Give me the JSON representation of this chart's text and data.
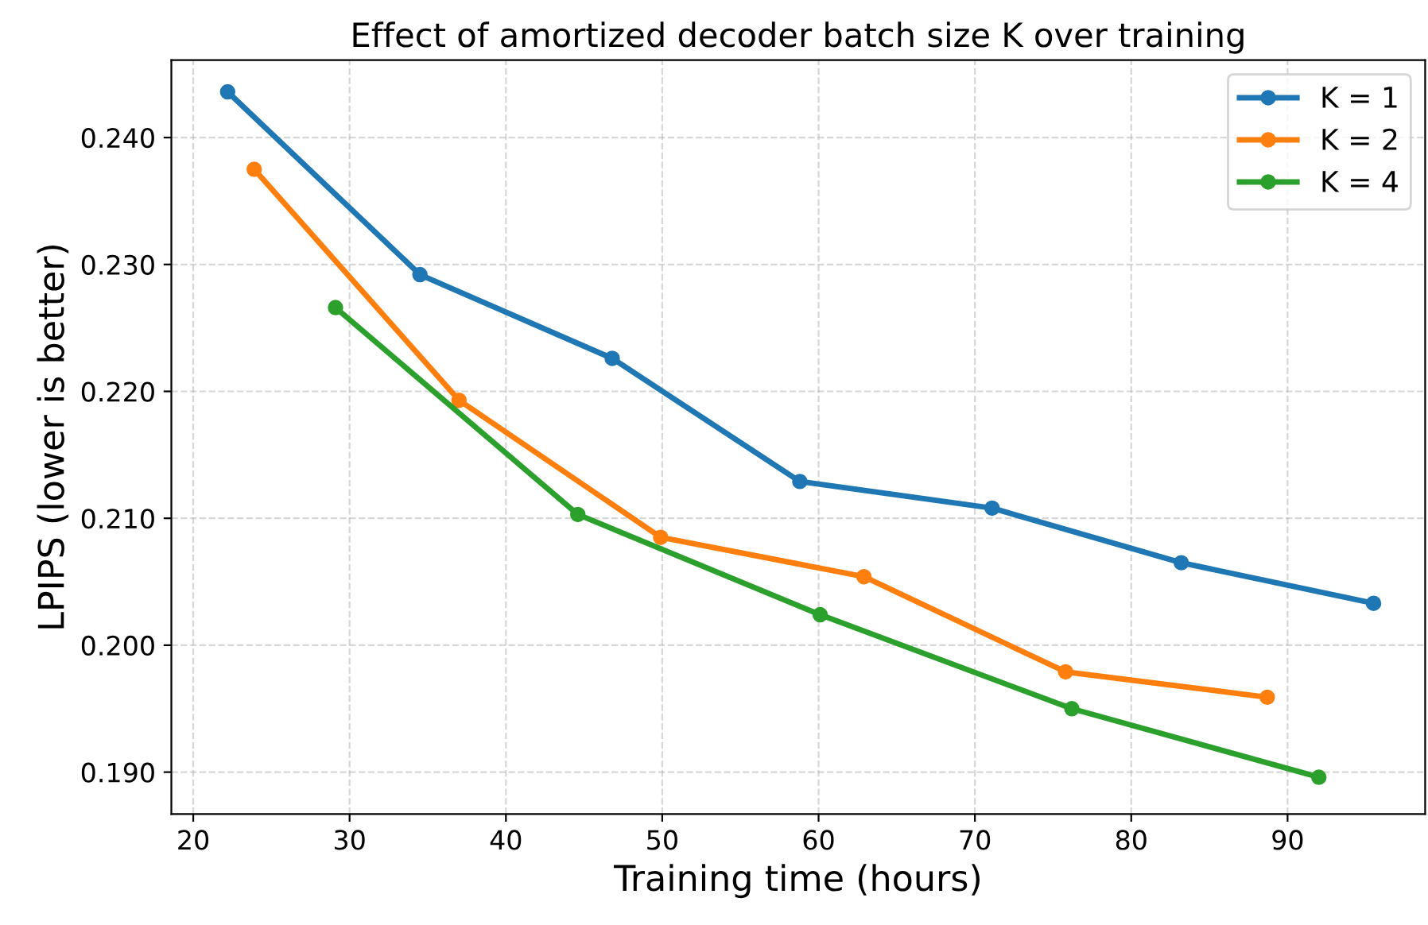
{
  "chart_data": {
    "type": "line",
    "title": "Effect of amortized decoder batch size K over training",
    "xlabel": "Training time (hours)",
    "ylabel": "LPIPS (lower is better)",
    "xlim": [
      18.6,
      98.8
    ],
    "xticks": [
      20,
      30,
      40,
      50,
      60,
      70,
      80,
      90
    ],
    "ylim": [
      0.1867,
      0.2461
    ],
    "yticks": [
      {
        "value": 0.19,
        "label": "0.190"
      },
      {
        "value": 0.2,
        "label": "0.200"
      },
      {
        "value": 0.21,
        "label": "0.210"
      },
      {
        "value": 0.22,
        "label": "0.220"
      },
      {
        "value": 0.23,
        "label": "0.230"
      },
      {
        "value": 0.24,
        "label": "0.240"
      }
    ],
    "grid": true,
    "legend": "top right",
    "marker": "circle",
    "line_style": "solid",
    "series": [
      {
        "name": "K = 1",
        "color": "#1f77b4",
        "x": [
          22.2,
          34.5,
          46.8,
          58.8,
          71.1,
          83.2,
          95.5
        ],
        "values": [
          0.2436,
          0.2292,
          0.2226,
          0.2129,
          0.2108,
          0.2065,
          0.2033
        ]
      },
      {
        "name": "K = 2",
        "color": "#ff7f0e",
        "x": [
          23.9,
          37.0,
          49.9,
          62.9,
          75.8,
          88.7
        ],
        "values": [
          0.2375,
          0.2193,
          0.2085,
          0.2054,
          0.1979,
          0.1959
        ]
      },
      {
        "name": "K = 4",
        "color": "#2ca02c",
        "x": [
          29.1,
          44.6,
          60.1,
          76.2,
          92.0
        ],
        "values": [
          0.2266,
          0.2103,
          0.2024,
          0.195,
          0.1896
        ]
      }
    ]
  }
}
